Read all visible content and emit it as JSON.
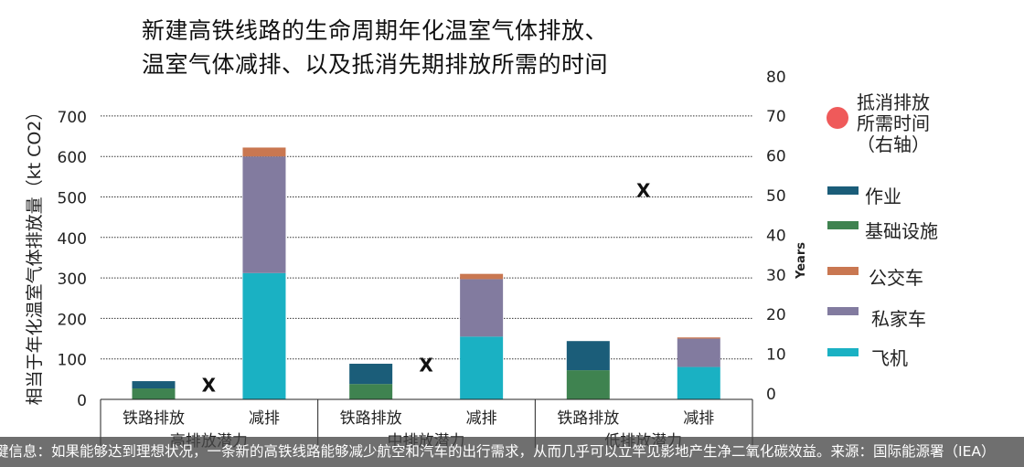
{
  "title": {
    "line1": "新建高铁线路的生命周期年化温室气体排放、",
    "line2": "温室气体减排、以及抵消先期排放所需的时间"
  },
  "y_left_label": "相当于年化温室气体排放量（kt CO2）",
  "y_right_label": "Years",
  "legend": {
    "offset_label_lines": [
      "抵消排放",
      "所需时间",
      "（右轴）"
    ],
    "items": [
      {
        "key": "operation",
        "label": "作业",
        "color": "#1b5d79"
      },
      {
        "key": "infrastructure",
        "label": "基础设施",
        "color": "#3f8350"
      },
      {
        "key": "bus",
        "label": "公交车",
        "color": "#c97751"
      },
      {
        "key": "car",
        "label": "私家车",
        "color": "#827b9f"
      },
      {
        "key": "plane",
        "label": "飞机",
        "color": "#1ab1c3"
      }
    ],
    "offset_color": "#ef5a5a"
  },
  "footer_text": "键信息：如果能够达到理想状况，一条新的高铁线路能够减少航空和汽车的出行需求，从而几乎可以立竿见影地产生净二氧化碳效益。来源：国际能源署（IEA）",
  "chart_data": {
    "type": "bar",
    "stacked": true,
    "y_left": {
      "min": 0,
      "max": 700,
      "ticks": [
        0,
        100,
        200,
        300,
        400,
        500,
        600,
        700
      ]
    },
    "y_right": {
      "min": 0,
      "max": 80,
      "ticks": [
        0,
        10,
        20,
        30,
        40,
        50,
        60,
        70,
        80
      ]
    },
    "groups": [
      {
        "label": "高排放潜力",
        "rail": {
          "label": "铁路排放",
          "operation": 18,
          "infrastructure": 27
        },
        "reduction": {
          "label": "减排",
          "plane": 312,
          "car": 288,
          "bus": 22
        },
        "offset_years": 2
      },
      {
        "label": "中排放潜力",
        "rail": {
          "label": "铁路排放",
          "operation": 50,
          "infrastructure": 38
        },
        "reduction": {
          "label": "减排",
          "plane": 155,
          "car": 142,
          "bus": 13
        },
        "offset_years": 7
      },
      {
        "label": "低排放潜力",
        "rail": {
          "label": "铁路排放",
          "operation": 72,
          "infrastructure": 72
        },
        "reduction": {
          "label": "减排",
          "plane": 80,
          "car": 70,
          "bus": 3
        },
        "offset_years": 51
      }
    ],
    "marker_label": "X",
    "grid": true,
    "legend_position": "right"
  }
}
